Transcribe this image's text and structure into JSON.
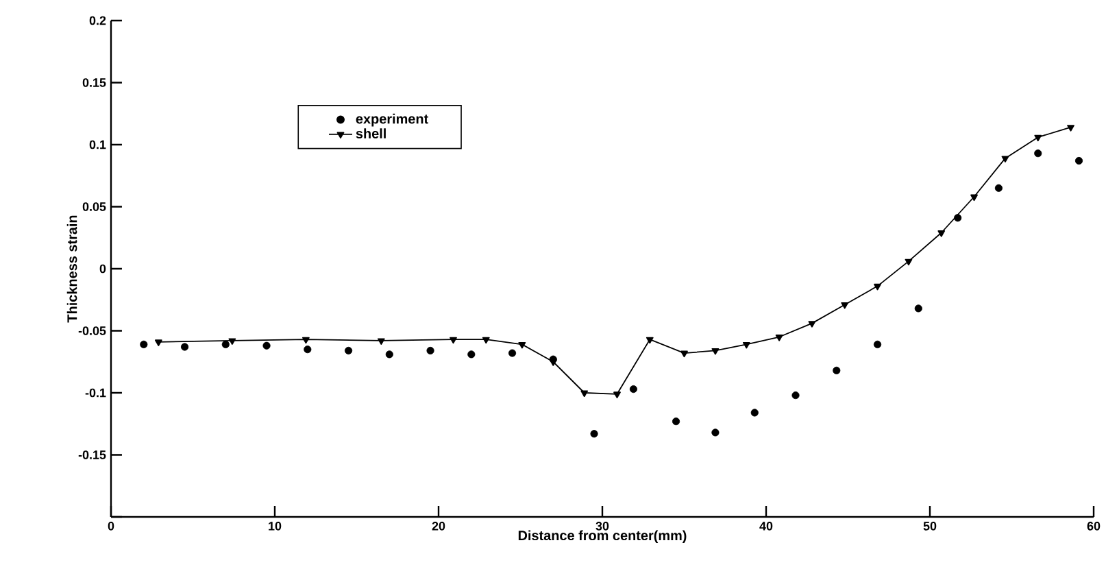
{
  "chart_data": {
    "type": "line",
    "xlabel": "Distance from center(mm)",
    "ylabel": "Thickness strain",
    "xlim": [
      0,
      60
    ],
    "xticks": [
      0,
      10,
      20,
      30,
      40,
      50,
      60
    ],
    "ylim": [
      -0.2,
      0.2
    ],
    "yticks": [
      {
        "value": -0.2,
        "label": null
      },
      -0.15,
      -0.1,
      -0.05,
      0,
      0.05,
      0.1,
      0.15,
      0.2
    ],
    "legend": "top left",
    "series": [
      {
        "name": "experiment",
        "type": "scatter",
        "marker": "circle",
        "color": "#000000",
        "x": [
          2.0,
          4.5,
          7.0,
          9.5,
          12.0,
          14.5,
          17.0,
          19.5,
          22.0,
          24.5,
          27.0,
          29.5,
          31.9,
          34.5,
          36.9,
          39.3,
          41.8,
          44.3,
          46.8,
          49.3,
          51.7,
          54.2,
          56.6,
          59.1
        ],
        "values": [
          -0.061,
          -0.063,
          -0.061,
          -0.062,
          -0.065,
          -0.066,
          -0.069,
          -0.066,
          -0.069,
          -0.068,
          -0.073,
          -0.133,
          -0.097,
          -0.123,
          -0.132,
          -0.116,
          -0.102,
          -0.082,
          -0.061,
          -0.032,
          0.041,
          0.065,
          0.093,
          0.087
        ]
      },
      {
        "name": "shell",
        "marker": "triangle",
        "color": "#000000",
        "x": [
          2.9,
          7.4,
          11.9,
          16.5,
          20.9,
          22.9,
          25.1,
          27.0,
          28.9,
          30.9,
          32.9,
          35.0,
          36.9,
          38.8,
          40.8,
          42.8,
          44.8,
          46.8,
          48.7,
          50.7,
          52.7,
          54.6,
          56.6,
          58.6
        ],
        "values": [
          -0.059,
          -0.058,
          -0.057,
          -0.058,
          -0.057,
          -0.057,
          -0.061,
          -0.075,
          -0.1,
          -0.101,
          -0.057,
          -0.068,
          -0.066,
          -0.061,
          -0.055,
          -0.044,
          -0.029,
          -0.014,
          0.006,
          0.029,
          0.058,
          0.089,
          0.106,
          0.114
        ]
      }
    ]
  }
}
